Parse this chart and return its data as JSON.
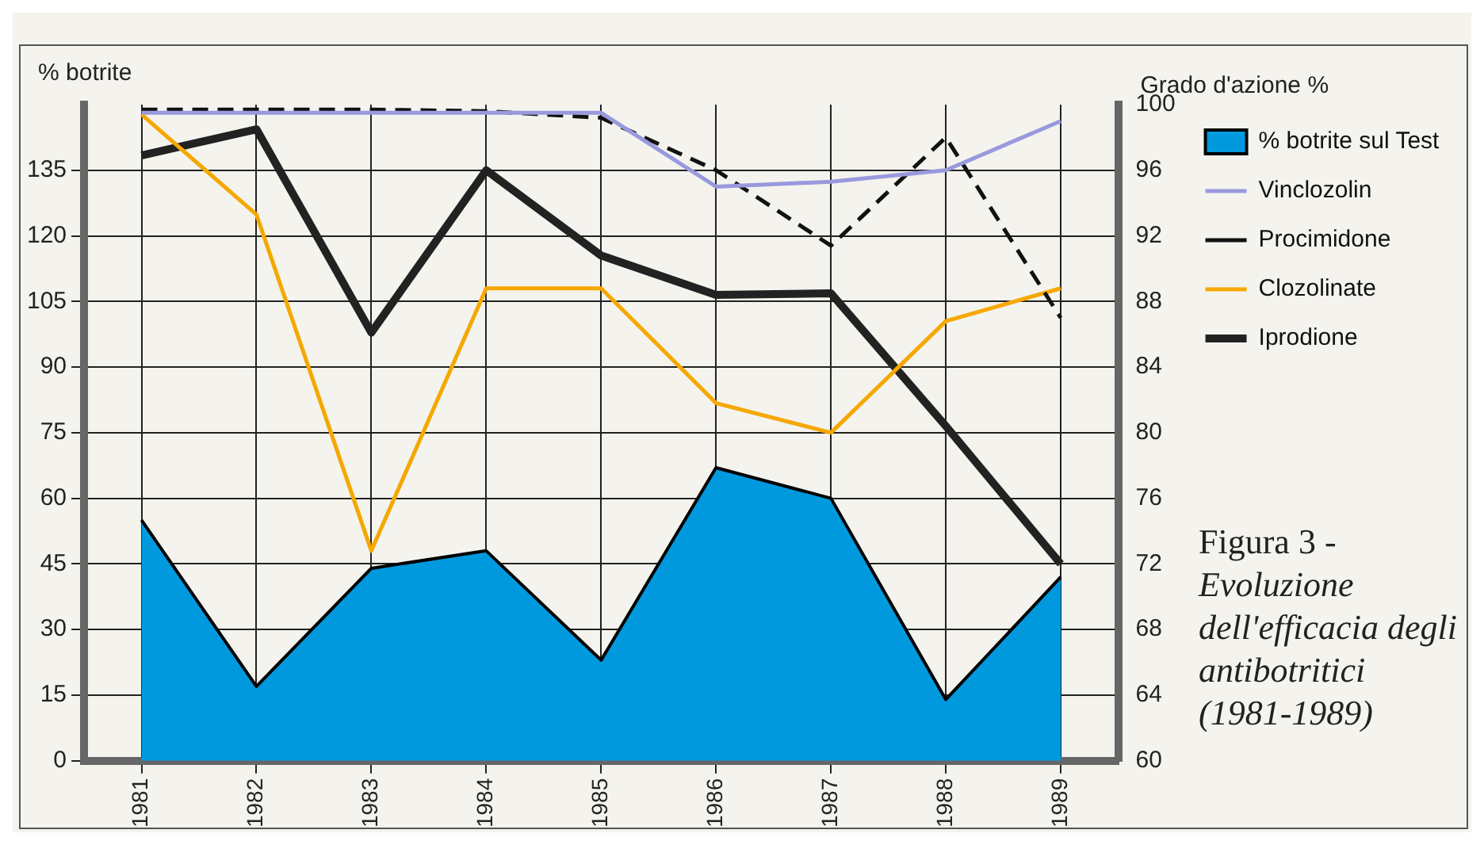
{
  "chart_data": {
    "type": "line",
    "categories": [
      "1981",
      "1982",
      "1983",
      "1984",
      "1985",
      "1986",
      "1987",
      "1988",
      "1989"
    ],
    "ylabel": "% botrite",
    "y2label": "Grado d'azione %",
    "series": [
      {
        "name": "% botrite sul Test",
        "type": "area",
        "color": "#0099dd",
        "values": [
          55,
          17,
          44,
          48,
          23,
          67,
          60,
          14,
          42
        ]
      },
      {
        "name": "Vinclozolin",
        "color": "#9999dd",
        "axis": "y2",
        "values": [
          99.5,
          99.5,
          99.5,
          99.5,
          99.5,
          95,
          95.3,
          96,
          99
        ]
      },
      {
        "name": "Procimidone",
        "color": "#111111",
        "axis": "y2",
        "line_style": "dashed",
        "values": [
          99.7,
          99.7,
          99.7,
          99.6,
          99.2,
          96,
          91.4,
          98,
          87
        ]
      },
      {
        "name": "Clozolinate",
        "color": "#f5a800",
        "axis": "y2",
        "values": [
          99.4,
          93.3,
          72.8,
          88.8,
          88.8,
          81.8,
          80,
          86.8,
          88.8
        ]
      },
      {
        "name": "Iprodione",
        "color": "#222222",
        "axis": "y2",
        "values": [
          96.9,
          98.5,
          86.1,
          96,
          90.8,
          88.4,
          88.5,
          80.4,
          72
        ]
      }
    ],
    "ylim": [
      0,
      150
    ],
    "yticks": [
      0,
      15,
      30,
      45,
      60,
      75,
      90,
      105,
      120,
      135
    ],
    "y2lim": [
      60,
      100
    ],
    "y2ticks": [
      60,
      64,
      68,
      72,
      76,
      80,
      84,
      88,
      92,
      96,
      100
    ],
    "grid": true,
    "legend": "right",
    "marker": "none",
    "line_style": "solid",
    "annotations": [
      "Figura 3 -",
      "Evoluzione dell'efficacia degli antibotritici (1981-1989)"
    ]
  }
}
